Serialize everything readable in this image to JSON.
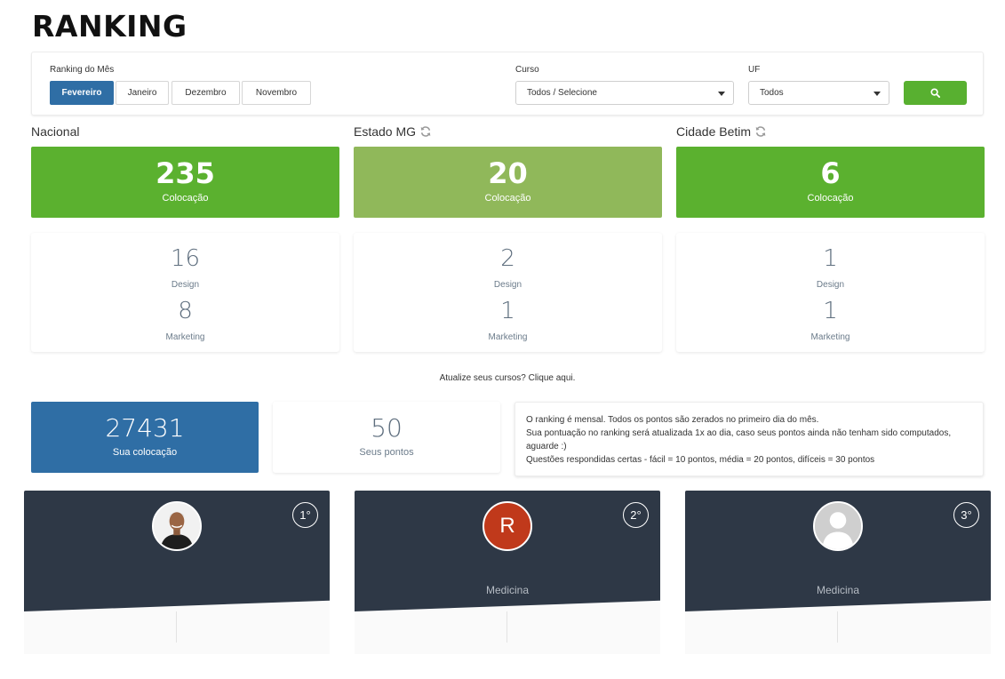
{
  "title": "RANKING",
  "filters": {
    "month_label": "Ranking do Mês",
    "months": [
      "Fevereiro",
      "Janeiro",
      "Dezembro",
      "Novembro"
    ],
    "active_month": "Fevereiro",
    "course_label": "Curso",
    "course_value": "Todos / Selecione",
    "uf_label": "UF",
    "uf_value": "Todos",
    "search_icon": "search-icon"
  },
  "regions": [
    {
      "title": "Nacional",
      "has_refresh": false,
      "position": "235",
      "position_label": "Colocação",
      "color": "#5bb12f",
      "stats": [
        {
          "value": "16",
          "label": "Design"
        },
        {
          "value": "8",
          "label": "Marketing"
        }
      ]
    },
    {
      "title": "Estado MG",
      "has_refresh": true,
      "position": "20",
      "position_label": "Colocação",
      "color": "#90b85a",
      "stats": [
        {
          "value": "2",
          "label": "Design"
        },
        {
          "value": "1",
          "label": "Marketing"
        }
      ]
    },
    {
      "title": "Cidade Betim",
      "has_refresh": true,
      "position": "6",
      "position_label": "Colocação",
      "color": "#5bb12f",
      "stats": [
        {
          "value": "1",
          "label": "Design"
        },
        {
          "value": "1",
          "label": "Marketing"
        }
      ]
    }
  ],
  "update_link": "Atualize seus cursos? Clique aqui.",
  "my_position": {
    "value": "27431",
    "label": "Sua colocação",
    "color": "#2f6ea5"
  },
  "my_points": {
    "value": "50",
    "label": "Seus pontos"
  },
  "info": [
    "O ranking é mensal. Todos os pontos são zerados no primeiro dia do mês.",
    "Sua pontuação no ranking será atualizada 1x ao dia, caso seus pontos ainda não tenham sido computados, aguarde :)",
    "Questões respondidas certas - fácil = 10 pontos, média = 20 pontos, difíceis = 30 pontos"
  ],
  "podium": [
    {
      "rank": "1°",
      "avatar": "photo",
      "course": ""
    },
    {
      "rank": "2°",
      "avatar": "letter",
      "initial": "R",
      "avatar_color": "#c0391b",
      "course": "Medicina"
    },
    {
      "rank": "3°",
      "avatar": "placeholder",
      "course": "Medicina"
    }
  ]
}
